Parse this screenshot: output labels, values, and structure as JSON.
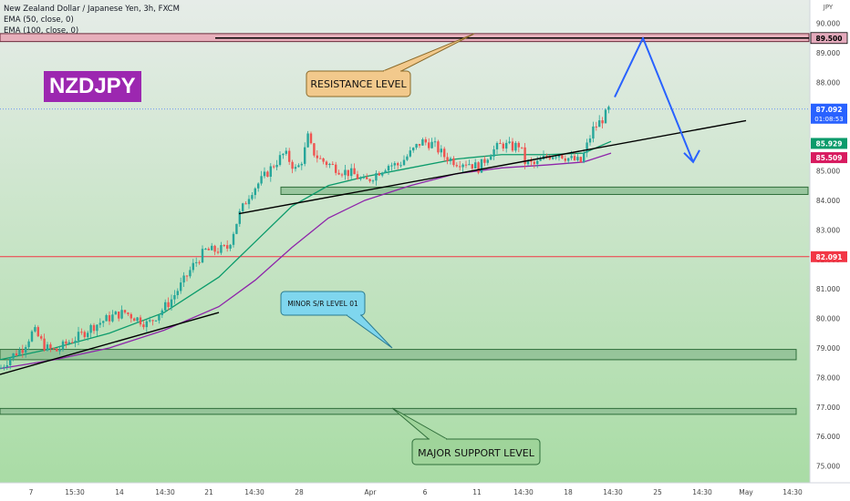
{
  "header": {
    "title": "New Zealand Dollar / Japanese Yen, 3h, FXCM",
    "ema50": "EMA (50, close, 0)",
    "ema100": "EMA (100, close, 0)",
    "currency": "JPY"
  },
  "symbol_label": "NZDJPY",
  "colors": {
    "background_top": "#e6ece8",
    "background_bottom": "#a9dca5",
    "up_candle": "#26a69a",
    "down_candle": "#ef5350",
    "ema50": "#0b9b6b",
    "ema100": "#8e24aa",
    "forecast": "#2962ff",
    "resistance_zone": "#e8a4b4",
    "support_zone": "#8fbf95",
    "label_resistance": "#f2c98c",
    "label_minor": "#7fd6ee",
    "label_major": "#9fd49a",
    "symbol_badge": "#9c27b0"
  },
  "chart_data": {
    "type": "candlestick",
    "y_axis": {
      "range": [
        74.4,
        90.5
      ],
      "ticks": [
        "90.000",
        "89.000",
        "88.000",
        "87.000",
        "86.000",
        "85.000",
        "84.000",
        "83.000",
        "82.000",
        "81.000",
        "80.000",
        "79.000",
        "78.000",
        "77.000",
        "76.000",
        "75.000"
      ]
    },
    "x_axis": {
      "ticks": [
        "7",
        "15:30",
        "14",
        "14:30",
        "21",
        "14:30",
        "28",
        "Apr",
        "6",
        "11",
        "14:30",
        "18",
        "14:30",
        "25",
        "14:30",
        "May",
        "14:30"
      ]
    },
    "price_labels": [
      {
        "value": "89.500",
        "kind": "resistance"
      },
      {
        "value": "87.092",
        "kind": "last",
        "timer": "01:08:53"
      },
      {
        "value": "85.929",
        "kind": "ema50"
      },
      {
        "value": "85.509",
        "kind": "ema100"
      },
      {
        "value": "82.091",
        "kind": "level"
      }
    ],
    "price_path": [
      [
        0,
        78.3
      ],
      [
        12,
        78.7
      ],
      [
        25,
        79.0
      ],
      [
        37,
        79.6
      ],
      [
        50,
        79.0
      ],
      [
        62,
        78.9
      ],
      [
        75,
        79.2
      ],
      [
        87,
        79.4
      ],
      [
        100,
        79.7
      ],
      [
        112,
        79.9
      ],
      [
        125,
        80.1
      ],
      [
        137,
        80.2
      ],
      [
        150,
        80.0
      ],
      [
        162,
        79.8
      ],
      [
        175,
        80.2
      ],
      [
        187,
        80.6
      ],
      [
        200,
        81.2
      ],
      [
        212,
        81.8
      ],
      [
        225,
        82.3
      ],
      [
        237,
        82.3
      ],
      [
        250,
        82.4
      ],
      [
        262,
        83.5
      ],
      [
        275,
        84.3
      ],
      [
        287,
        84.7
      ],
      [
        300,
        85.2
      ],
      [
        312,
        85.6
      ],
      [
        325,
        85.0
      ],
      [
        333,
        85.5
      ],
      [
        337,
        86.2
      ],
      [
        342,
        85.7
      ],
      [
        350,
        85.4
      ],
      [
        362,
        85.2
      ],
      [
        375,
        85.0
      ],
      [
        387,
        84.9
      ],
      [
        400,
        84.6
      ],
      [
        412,
        84.9
      ],
      [
        425,
        85.2
      ],
      [
        437,
        85.2
      ],
      [
        450,
        85.6
      ],
      [
        462,
        86.0
      ],
      [
        475,
        85.9
      ],
      [
        487,
        85.5
      ],
      [
        500,
        85.3
      ],
      [
        512,
        85.3
      ],
      [
        525,
        85.1
      ],
      [
        537,
        85.6
      ],
      [
        550,
        85.9
      ],
      [
        562,
        85.8
      ],
      [
        570,
        85.9
      ],
      [
        575,
        85.3
      ],
      [
        587,
        85.2
      ],
      [
        600,
        85.5
      ],
      [
        612,
        85.6
      ],
      [
        625,
        85.4
      ],
      [
        637,
        85.3
      ],
      [
        650,
        86.4
      ],
      [
        662,
        86.8
      ],
      [
        668,
        87.1
      ]
    ],
    "ema50": [
      [
        0,
        78.6
      ],
      [
        60,
        79.0
      ],
      [
        120,
        79.5
      ],
      [
        180,
        80.2
      ],
      [
        240,
        81.4
      ],
      [
        280,
        82.6
      ],
      [
        320,
        83.8
      ],
      [
        360,
        84.5
      ],
      [
        400,
        84.8
      ],
      [
        450,
        85.1
      ],
      [
        500,
        85.4
      ],
      [
        550,
        85.55
      ],
      [
        600,
        85.55
      ],
      [
        640,
        85.6
      ],
      [
        670,
        86.0
      ]
    ],
    "ema100": [
      [
        0,
        78.3
      ],
      [
        60,
        78.6
      ],
      [
        120,
        79.0
      ],
      [
        180,
        79.6
      ],
      [
        240,
        80.4
      ],
      [
        280,
        81.3
      ],
      [
        320,
        82.4
      ],
      [
        360,
        83.4
      ],
      [
        400,
        84.0
      ],
      [
        450,
        84.5
      ],
      [
        500,
        84.9
      ],
      [
        550,
        85.1
      ],
      [
        600,
        85.2
      ],
      [
        640,
        85.3
      ],
      [
        670,
        85.6
      ]
    ],
    "trendlines": [
      {
        "from": [
          0,
          78.1
        ],
        "to": [
          240,
          80.2
        ]
      },
      {
        "from": [
          262,
          83.55
        ],
        "to": [
          818,
          86.7
        ]
      }
    ],
    "forecast_path": [
      [
        674,
        87.5
      ],
      [
        705,
        89.5
      ],
      [
        760,
        85.3
      ]
    ],
    "zones": [
      {
        "low": 89.38,
        "high": 89.65,
        "x_start": 0,
        "x_end": 887,
        "kind": "resistance"
      },
      {
        "low": 84.2,
        "high": 84.45,
        "x_start": 308,
        "x_end": 886,
        "kind": "support"
      },
      {
        "low": 78.6,
        "high": 78.95,
        "x_start": 0,
        "x_end": 873,
        "kind": "minor"
      },
      {
        "low": 76.75,
        "high": 76.95,
        "x_start": 0,
        "x_end": 873,
        "kind": "major"
      }
    ],
    "horizontal_lines": [
      {
        "value": 82.091,
        "kind": "level"
      }
    ],
    "annotations": [
      {
        "text": "RESISTANCE LEVEL",
        "kind": "resistance"
      },
      {
        "text": "MINOR S/R LEVEL 01",
        "kind": "minor"
      },
      {
        "text": "MAJOR SUPPORT LEVEL",
        "kind": "major"
      }
    ]
  }
}
